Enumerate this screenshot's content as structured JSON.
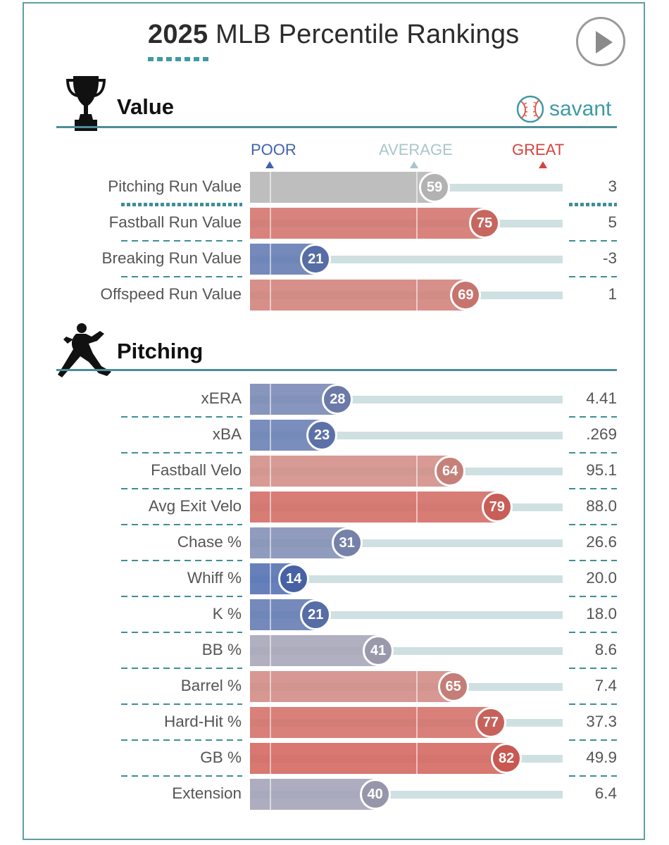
{
  "title": {
    "year": "2025",
    "rest": "MLB Percentile Rankings"
  },
  "play_button": {
    "label": "play"
  },
  "sections": {
    "value": {
      "title": "Value"
    },
    "pitching": {
      "title": "Pitching"
    }
  },
  "brand": {
    "name": "savant"
  },
  "scale": {
    "poor": "POOR",
    "average": "AVERAGE",
    "great": "GREAT"
  },
  "colors": {
    "teal": "#3f9aa7",
    "poor": "#3f62b0",
    "great": "#d6433b",
    "neutral": "#bdbdbd",
    "track": "#cfe0e2"
  },
  "chart_data": {
    "type": "bar",
    "title": "2025 MLB Percentile Rankings",
    "xlim": [
      0,
      100
    ],
    "groups": [
      {
        "name": "Value",
        "metrics": [
          {
            "label": "Pitching Run Value",
            "percentile": 59,
            "value": "3",
            "neutral": true
          },
          {
            "label": "Fastball Run Value",
            "percentile": 75,
            "value": "5"
          },
          {
            "label": "Breaking Run Value",
            "percentile": 21,
            "value": "-3"
          },
          {
            "label": "Offspeed Run Value",
            "percentile": 69,
            "value": "1"
          }
        ]
      },
      {
        "name": "Pitching",
        "metrics": [
          {
            "label": "xERA",
            "percentile": 28,
            "value": "4.41"
          },
          {
            "label": "xBA",
            "percentile": 23,
            "value": ".269"
          },
          {
            "label": "Fastball Velo",
            "percentile": 64,
            "value": "95.1"
          },
          {
            "label": "Avg Exit Velo",
            "percentile": 79,
            "value": "88.0"
          },
          {
            "label": "Chase %",
            "percentile": 31,
            "value": "26.6"
          },
          {
            "label": "Whiff %",
            "percentile": 14,
            "value": "20.0"
          },
          {
            "label": "K %",
            "percentile": 21,
            "value": "18.0"
          },
          {
            "label": "BB %",
            "percentile": 41,
            "value": "8.6"
          },
          {
            "label": "Barrel %",
            "percentile": 65,
            "value": "7.4"
          },
          {
            "label": "Hard-Hit %",
            "percentile": 77,
            "value": "37.3"
          },
          {
            "label": "GB %",
            "percentile": 82,
            "value": "49.9"
          },
          {
            "label": "Extension",
            "percentile": 40,
            "value": "6.4"
          }
        ]
      }
    ]
  }
}
